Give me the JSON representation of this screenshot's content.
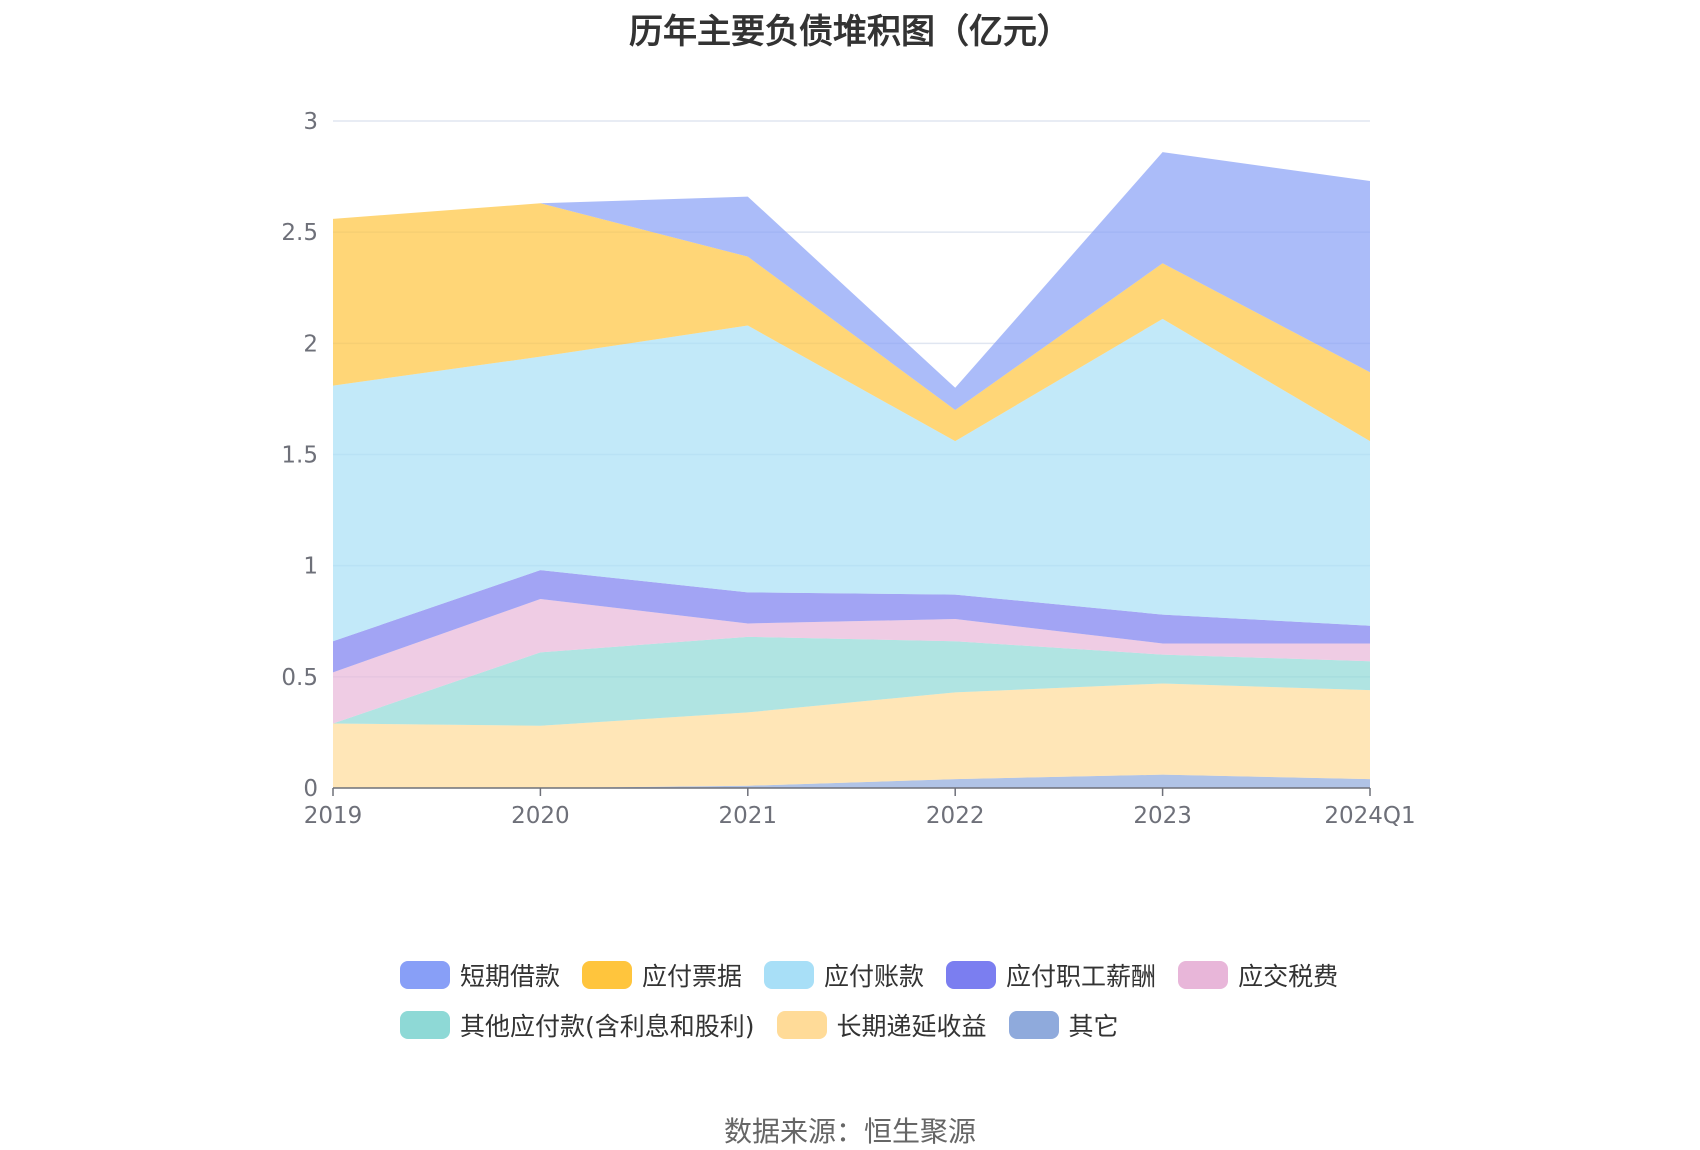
{
  "chart_data": {
    "type": "area",
    "stacked": true,
    "title": "历年主要负债堆积图（亿元）",
    "categories": [
      "2019",
      "2020",
      "2021",
      "2022",
      "2023",
      "2024Q1"
    ],
    "ylim": [
      0,
      3
    ],
    "yticks": [
      "0",
      "0.5",
      "1",
      "1.5",
      "2",
      "2.5",
      "3"
    ],
    "grid": true,
    "legend_position": "bottom",
    "series": [
      {
        "name": "其它",
        "color": "#8faadc",
        "values": [
          0.0,
          0.0,
          0.01,
          0.04,
          0.06,
          0.04
        ]
      },
      {
        "name": "长期递延收益",
        "color": "#ffdb98",
        "values": [
          0.29,
          0.28,
          0.33,
          0.39,
          0.41,
          0.4
        ]
      },
      {
        "name": "其他应付款(含利息和股利)",
        "color": "#8ed9d6",
        "values": [
          0.0,
          0.33,
          0.34,
          0.23,
          0.13,
          0.13
        ]
      },
      {
        "name": "应交税费",
        "color": "#e8b6d9",
        "values": [
          0.23,
          0.24,
          0.06,
          0.1,
          0.05,
          0.08
        ]
      },
      {
        "name": "应付职工薪酬",
        "color": "#7b7ef0",
        "values": [
          0.14,
          0.13,
          0.14,
          0.11,
          0.13,
          0.08
        ]
      },
      {
        "name": "应付账款",
        "color": "#a8dff7",
        "values": [
          1.15,
          0.96,
          1.2,
          0.69,
          1.33,
          0.83
        ]
      },
      {
        "name": "应付票据",
        "color": "#ffc53d",
        "values": [
          0.75,
          0.69,
          0.31,
          0.14,
          0.25,
          0.31
        ]
      },
      {
        "name": "短期借款",
        "color": "#889ff7",
        "values": [
          0.0,
          0.0,
          0.27,
          0.1,
          0.5,
          0.86
        ]
      }
    ]
  },
  "legend_rows": [
    [
      {
        "label": "短期借款",
        "color": "#889ff7"
      },
      {
        "label": "应付票据",
        "color": "#ffc53d"
      },
      {
        "label": "应付账款",
        "color": "#a8dff7"
      },
      {
        "label": "应付职工薪酬",
        "color": "#7b7ef0"
      },
      {
        "label": "应交税费",
        "color": "#e8b6d9"
      }
    ],
    [
      {
        "label": "其他应付款(含利息和股利)",
        "color": "#8ed9d6"
      },
      {
        "label": "长期递延收益",
        "color": "#ffdb98"
      },
      {
        "label": "其它",
        "color": "#8faadc"
      }
    ]
  ],
  "source_text": "数据来源：恒生聚源"
}
